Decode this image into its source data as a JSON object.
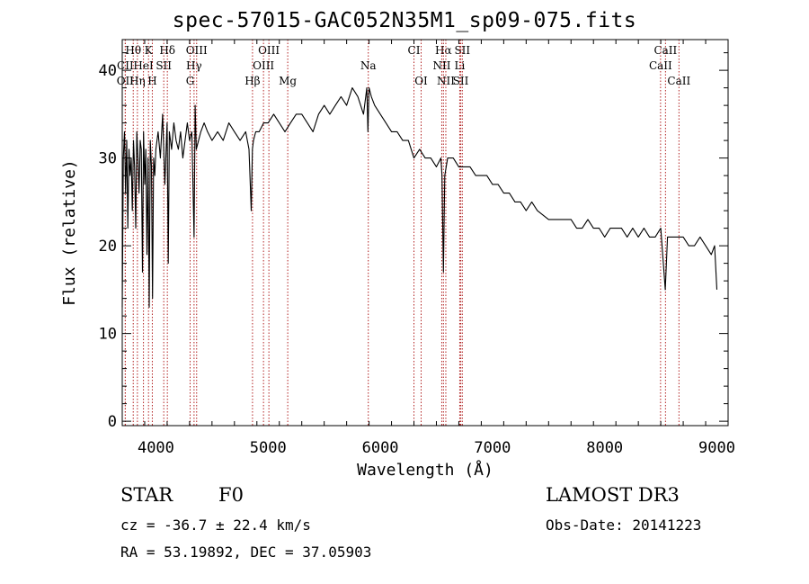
{
  "chart_data": {
    "type": "line",
    "title": "spec-57015-GAC052N35M1_sp09-075.fits",
    "xlabel": "Wavelength (Å)",
    "ylabel": "Flux (relative)",
    "xlim": [
      3700,
      9100
    ],
    "ylim": [
      -0.5,
      43.5
    ],
    "xticks": [
      4000,
      5000,
      6000,
      7000,
      8000,
      9000
    ],
    "yticks": [
      0,
      10,
      20,
      30,
      40
    ],
    "grid": false,
    "series": [
      {
        "name": "flux",
        "x": [
          3700,
          3710,
          3720,
          3730,
          3740,
          3750,
          3760,
          3770,
          3780,
          3790,
          3800,
          3810,
          3820,
          3830,
          3840,
          3850,
          3860,
          3870,
          3880,
          3890,
          3900,
          3910,
          3920,
          3930,
          3940,
          3950,
          3960,
          3970,
          3980,
          3990,
          4000,
          4020,
          4040,
          4060,
          4080,
          4100,
          4110,
          4120,
          4140,
          4160,
          4180,
          4200,
          4220,
          4240,
          4260,
          4280,
          4300,
          4320,
          4340,
          4350,
          4360,
          4380,
          4400,
          4430,
          4460,
          4500,
          4550,
          4600,
          4650,
          4700,
          4750,
          4800,
          4830,
          4850,
          4860,
          4870,
          4890,
          4920,
          4960,
          5000,
          5050,
          5100,
          5150,
          5200,
          5250,
          5300,
          5350,
          5400,
          5450,
          5500,
          5550,
          5600,
          5650,
          5700,
          5750,
          5800,
          5850,
          5880,
          5890,
          5900,
          5920,
          5950,
          6000,
          6050,
          6100,
          6150,
          6200,
          6250,
          6300,
          6350,
          6400,
          6450,
          6500,
          6540,
          6550,
          6563,
          6575,
          6600,
          6650,
          6700,
          6750,
          6800,
          6850,
          6900,
          6950,
          7000,
          7050,
          7100,
          7150,
          7200,
          7250,
          7300,
          7350,
          7400,
          7500,
          7600,
          7650,
          7700,
          7750,
          7800,
          7850,
          7900,
          7950,
          8000,
          8050,
          8100,
          8150,
          8200,
          8250,
          8300,
          8350,
          8400,
          8450,
          8500,
          8540,
          8560,
          8600,
          8650,
          8700,
          8750,
          8800,
          8850,
          8900,
          8950,
          8980,
          9000
        ],
        "y": [
          13,
          30,
          33,
          26,
          32,
          22,
          31,
          28,
          30,
          24,
          32,
          29,
          22,
          33,
          30,
          26,
          32,
          31,
          17,
          33,
          27,
          31,
          19,
          30,
          13,
          32,
          29,
          14,
          30,
          28,
          31,
          33,
          30,
          35,
          27,
          34,
          18,
          33,
          31,
          34,
          32,
          31,
          33,
          30,
          32,
          34,
          32,
          33,
          21,
          36,
          31,
          32,
          33,
          34,
          33,
          32,
          33,
          32,
          34,
          33,
          32,
          33,
          31,
          24,
          31,
          32,
          33,
          33,
          34,
          34,
          35,
          34,
          33,
          34,
          35,
          35,
          34,
          33,
          35,
          36,
          35,
          36,
          37,
          36,
          38,
          37,
          35,
          38,
          33,
          38,
          37,
          36,
          35,
          34,
          33,
          33,
          32,
          32,
          30,
          31,
          30,
          30,
          29,
          30,
          28,
          17,
          28,
          30,
          30,
          29,
          29,
          29,
          28,
          28,
          28,
          27,
          27,
          26,
          26,
          25,
          25,
          24,
          25,
          24,
          23,
          23,
          23,
          23,
          22,
          22,
          23,
          22,
          22,
          21,
          22,
          22,
          22,
          21,
          22,
          21,
          22,
          21,
          21,
          22,
          15,
          21,
          21,
          21,
          21,
          20,
          20,
          21,
          20,
          19,
          20,
          15
        ]
      }
    ],
    "lines": [
      {
        "name": "Hθ",
        "x": 3798,
        "row": 0
      },
      {
        "name": "K",
        "x": 3934,
        "row": 0
      },
      {
        "name": "Hδ",
        "x": 4102,
        "row": 0
      },
      {
        "name": "OIII",
        "x": 4363,
        "row": 0
      },
      {
        "name": "OIII",
        "x": 5007,
        "row": 0
      },
      {
        "name": "CI",
        "x": 6300,
        "row": 0
      },
      {
        "name": "Hα",
        "x": 6563,
        "row": 0
      },
      {
        "name": "SII",
        "x": 6731,
        "row": 0
      },
      {
        "name": "CaII",
        "x": 8542,
        "row": 0
      },
      {
        "name": "CII",
        "x": 3727,
        "row": 1
      },
      {
        "name": "HeI",
        "x": 3889,
        "row": 1
      },
      {
        "name": "SII",
        "x": 4070,
        "row": 1
      },
      {
        "name": "Hγ",
        "x": 4340,
        "row": 1
      },
      {
        "name": "OIII",
        "x": 4959,
        "row": 1
      },
      {
        "name": "Na",
        "x": 5893,
        "row": 1
      },
      {
        "name": "NII",
        "x": 6548,
        "row": 1
      },
      {
        "name": "Li",
        "x": 6708,
        "row": 1
      },
      {
        "name": "CaII",
        "x": 8498,
        "row": 1
      },
      {
        "name": "OII",
        "x": 3727,
        "row": 2
      },
      {
        "name": "Hη",
        "x": 3835,
        "row": 2
      },
      {
        "name": "H",
        "x": 3968,
        "row": 2
      },
      {
        "name": "G",
        "x": 4305,
        "row": 2
      },
      {
        "name": "Hβ",
        "x": 4861,
        "row": 2
      },
      {
        "name": "Mg",
        "x": 5175,
        "row": 2
      },
      {
        "name": "OI",
        "x": 6364,
        "row": 2
      },
      {
        "name": "NII",
        "x": 6584,
        "row": 2
      },
      {
        "name": "SII",
        "x": 6717,
        "row": 2
      },
      {
        "name": "CaII",
        "x": 8662,
        "row": 2
      }
    ]
  },
  "footer": {
    "object_class": "STAR",
    "subclass": "F0",
    "survey": "LAMOST DR3",
    "redshift": "cz = -36.7 ± 22.4 km/s",
    "obs_date": "Obs-Date: 20141223",
    "coords": "RA =  53.19892, DEC =  37.05903"
  },
  "colors": {
    "axis": "#000000",
    "spectrum": "#000000",
    "line_marker": "#b22222"
  }
}
